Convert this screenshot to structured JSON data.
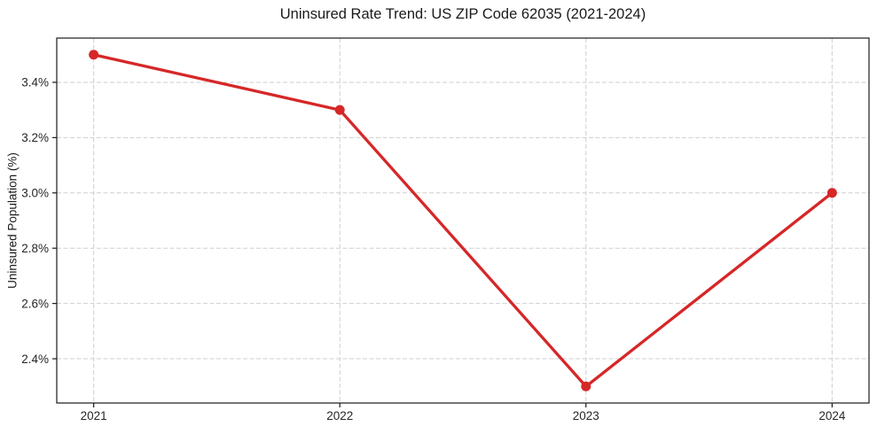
{
  "figure": {
    "title": "Uninsured Rate Trend: US ZIP Code 62035 (2021-2024)"
  },
  "chart_data": {
    "type": "line",
    "title": "Uninsured Rate Trend: US ZIP Code 62035 (2021-2024)",
    "xlabel": "",
    "ylabel": "Uninsured Population (%)",
    "x": [
      2021,
      2022,
      2023,
      2024
    ],
    "series": [
      {
        "name": "uninsured-rate",
        "values": [
          3.5,
          3.3,
          2.3,
          3.0
        ]
      }
    ],
    "xticks": [
      2021,
      2022,
      2023,
      2024
    ],
    "xtick_labels": [
      "2021",
      "2022",
      "2023",
      "2024"
    ],
    "yticks": [
      2.4,
      2.6,
      2.8,
      3.0,
      3.2,
      3.4
    ],
    "ytick_labels": [
      "2.4%",
      "2.6%",
      "2.8%",
      "3.0%",
      "3.2%",
      "3.4%"
    ],
    "xlim": [
      2020.85,
      2024.15
    ],
    "ylim": [
      2.24,
      3.56
    ],
    "grid": true,
    "legend": "none",
    "colors": {
      "line": "#d62728",
      "marker": "#d62728",
      "grid": "#cfcfcf",
      "axis": "#1a1a1a",
      "tick_label": "#262626",
      "background": "#ffffff"
    }
  }
}
